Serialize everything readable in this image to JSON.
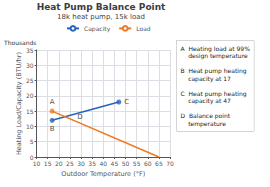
{
  "chart_data": {
    "type": "line",
    "title": "Heat Pump Balance Point",
    "subtitle": "18k heat pump, 15k load",
    "xlabel": "Outdoor Temperature (°F)",
    "ylabel": "Heating Load/Capacity (BTU/hr)",
    "annotations": {
      "axis_note": "Thousands",
      "key": [
        "A  Heating load at 99%\n    design temperature",
        "B  Heat pump heating\n    capacity at 17",
        "C  Heat pump heating\n    capacity at 47",
        "D  Balance point\n    temperature"
      ]
    },
    "xlim": [
      10,
      70
    ],
    "ylim": [
      0,
      35
    ],
    "xticks": [
      10,
      15,
      20,
      25,
      30,
      35,
      40,
      45,
      50,
      55,
      60,
      65,
      70
    ],
    "yticks": [
      0,
      5,
      10,
      15,
      20,
      25,
      30,
      35
    ],
    "grid": true,
    "legend": "top",
    "series": [
      {
        "name": "Capacity",
        "color": "#2563be",
        "x": [
          17,
          47
        ],
        "values": [
          12,
          18
        ]
      },
      {
        "name": "Load",
        "color": "#f07820",
        "x": [
          17,
          65
        ],
        "values": [
          15,
          0
        ]
      }
    ],
    "points": [
      {
        "label": "A",
        "x": 17,
        "y": 15,
        "color": "#f07820",
        "marker": "circle"
      },
      {
        "label": "B",
        "x": 17,
        "y": 12,
        "color": "#2563be",
        "marker": "circle"
      },
      {
        "label": "C",
        "x": 47,
        "y": 18,
        "color": "#2563be",
        "marker": "circle"
      },
      {
        "label": "D",
        "x": 27,
        "y": 13.0,
        "marker": "none"
      }
    ]
  }
}
